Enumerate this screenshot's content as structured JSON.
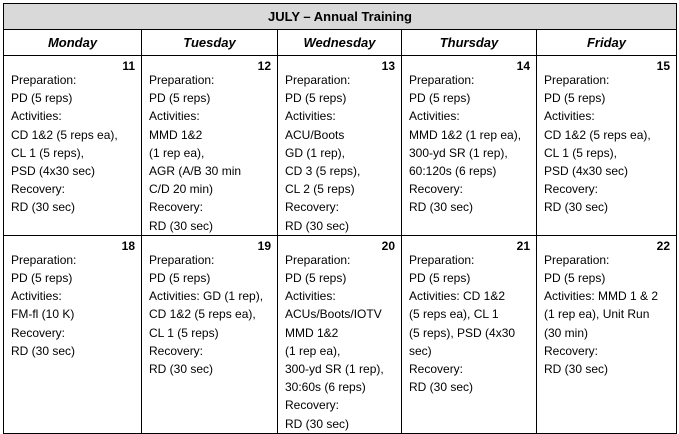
{
  "title": "JULY – Annual Training",
  "days": [
    "Monday",
    "Tuesday",
    "Wednesday",
    "Thursday",
    "Friday"
  ],
  "weeks": [
    [
      {
        "date": "11",
        "lines": [
          "Preparation:",
          "PD (5 reps)",
          "Activities:",
          "CD 1&2 (5 reps ea),",
          "CL 1 (5 reps),",
          "PSD (4x30 sec)",
          "Recovery:",
          "RD (30 sec)"
        ]
      },
      {
        "date": "12",
        "lines": [
          "Preparation:",
          "PD (5 reps)",
          "Activities:",
          "MMD 1&2",
          "(1 rep ea),",
          "AGR (A/B 30 min",
          "C/D 20 min)",
          "Recovery:",
          "RD (30 sec)"
        ]
      },
      {
        "date": "13",
        "lines": [
          "Preparation:",
          "PD (5 reps)",
          "Activities:",
          "ACU/Boots",
          "GD (1 rep),",
          "CD 3 (5 reps),",
          "CL 2 (5  reps)",
          "Recovery:",
          "RD (30 sec)"
        ]
      },
      {
        "date": "14",
        "lines": [
          "Preparation:",
          "PD (5 reps)",
          "Activities:",
          "MMD 1&2 (1 rep ea),",
          "300-yd SR (1 rep),",
          "60:120s (6 reps)",
          "Recovery:",
          "RD (30 sec)"
        ]
      },
      {
        "date": "15",
        "lines": [
          "Preparation:",
          "PD (5 reps)",
          "Activities:",
          "CD 1&2 (5 reps ea),",
          "CL 1 (5 reps),",
          "PSD (4x30 sec)",
          "Recovery:",
          "RD (30 sec)"
        ]
      }
    ],
    [
      {
        "date": "18",
        "lines": [
          "Preparation:",
          "PD (5 reps)",
          "Activities:",
          "FM-fl (10 K)",
          "Recovery:",
          "RD (30 sec)"
        ]
      },
      {
        "date": "19",
        "lines": [
          "Preparation:",
          "PD (5 reps)",
          "Activities: GD (1 rep),",
          "CD 1&2 (5 reps ea),",
          "CL 1 (5 reps)",
          "Recovery:",
          "RD (30 sec)"
        ]
      },
      {
        "date": "20",
        "lines": [
          "Preparation:",
          "PD (5 reps)",
          "Activities:",
          "ACUs/Boots/IOTV",
          "MMD 1&2",
          "(1 rep ea),",
          "300-yd SR (1 rep),",
          "30:60s (6 reps)",
          "Recovery:",
          "RD (30 sec)"
        ]
      },
      {
        "date": "21",
        "lines": [
          "Preparation:",
          "PD (5 reps)",
          "Activities: CD 1&2",
          "(5 reps ea), CL 1",
          "(5 reps), PSD (4x30",
          "sec)",
          "Recovery:",
          "RD (30 sec)"
        ]
      },
      {
        "date": "22",
        "lines": [
          "Preparation:",
          "PD (5 reps)",
          "Activities: MMD 1 & 2",
          "(1 rep ea), Unit Run",
          "(30 min)",
          "Recovery:",
          "RD (30 sec)"
        ]
      }
    ]
  ]
}
